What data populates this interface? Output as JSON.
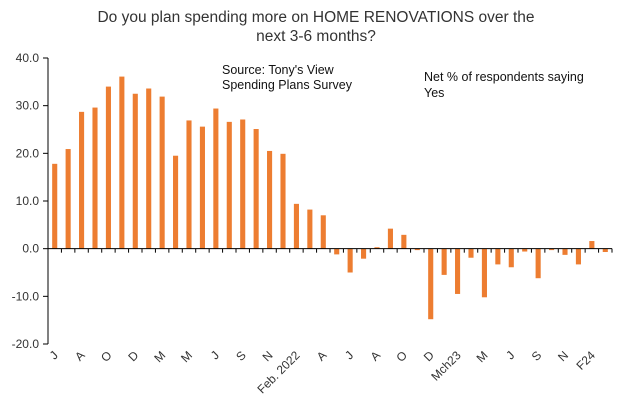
{
  "chart_data": {
    "type": "bar",
    "title_lines": [
      "Do you plan spending more on HOME RENOVATIONS over the",
      "next 3-6 months?"
    ],
    "annotations": {
      "source": [
        "Source: Tony's View",
        "Spending Plans Survey"
      ],
      "note": [
        "Net % of respondents saying",
        "Yes"
      ]
    },
    "ylim": [
      -20,
      40
    ],
    "y_ticks": [
      "40.0",
      "30.0",
      "20.0",
      "10.0",
      "0.0",
      "-10.0",
      "-20.0"
    ],
    "y_tick_values": [
      40,
      30,
      20,
      10,
      0,
      -10,
      -20
    ],
    "x_labels": [
      "J",
      "A",
      "O",
      "D",
      "M",
      "M",
      "J",
      "S",
      "N",
      "Feb. 2022",
      "A",
      "J",
      "A",
      "O",
      "D",
      "Mch23",
      "M",
      "J",
      "S",
      "N",
      "F24"
    ],
    "x_label_bar_index": [
      0,
      2,
      4,
      6,
      8,
      10,
      12,
      14,
      16,
      18,
      20,
      22,
      24,
      26,
      28,
      30,
      32,
      34,
      36,
      38,
      40
    ],
    "values": [
      17.8,
      20.9,
      28.7,
      29.6,
      34.0,
      36.1,
      32.5,
      33.6,
      31.9,
      19.5,
      26.9,
      25.6,
      29.4,
      26.6,
      27.1,
      25.1,
      20.5,
      19.9,
      9.4,
      8.2,
      7.0,
      -1.2,
      -5.0,
      -2.1,
      0.3,
      4.2,
      2.9,
      -0.3,
      -14.8,
      -5.5,
      -9.5,
      -1.9,
      -10.2,
      -3.3,
      -3.9,
      -0.6,
      -6.2,
      -0.3,
      -1.3,
      -3.3,
      1.6,
      -0.7
    ],
    "bar_color": "#ED7D31",
    "axis_color": "#000000",
    "grid": false
  }
}
